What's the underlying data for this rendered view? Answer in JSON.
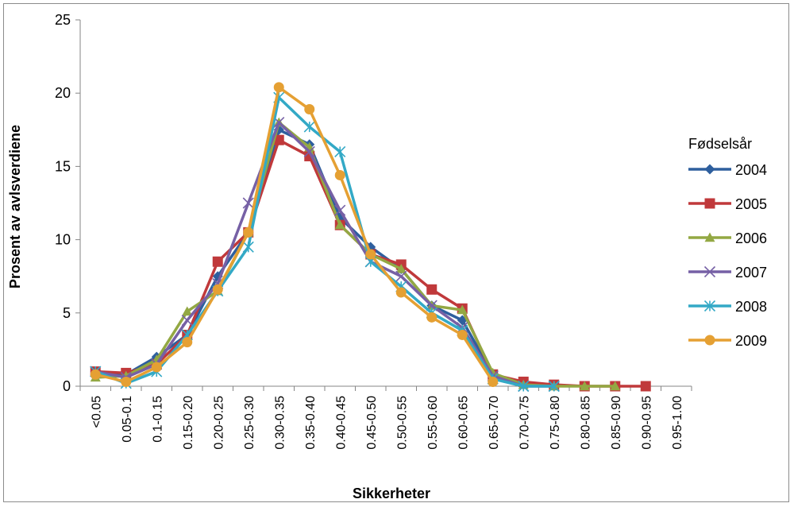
{
  "chart_data": {
    "type": "line",
    "title": "",
    "xlabel": "Sikkerheter",
    "ylabel": "Prosent av avlsverdiene",
    "ylim": [
      0,
      25
    ],
    "yticks": [
      0,
      5,
      10,
      15,
      20,
      25
    ],
    "grid": "none",
    "legend_title": "Fødselsår",
    "legend_position": "right",
    "categories": [
      "<0.05",
      "0.05-0.1",
      "0.1-0.15",
      "0.15-0.20",
      "0.20-0.25",
      "0.25-0.30",
      "0.30-0.35",
      "0.35-0.40",
      "0.40-0.45",
      "0.45-0.50",
      "0.50-0.55",
      "0.55-0.60",
      "0.60-0.65",
      "0.65-0.70",
      "0.70-0.75",
      "0.75-0.80",
      "0.80-0.85",
      "0.85-0.90",
      "0.90-0.95",
      "0.95-1.00"
    ],
    "series": [
      {
        "name": "2004",
        "color": "#2e5f9e",
        "marker": "diamond",
        "values": [
          1.0,
          0.8,
          2.0,
          3.5,
          7.5,
          10.5,
          17.5,
          16.5,
          11.5,
          9.5,
          8.0,
          5.5,
          4.5,
          0.8,
          0.1,
          0.0,
          null,
          null,
          null,
          null
        ]
      },
      {
        "name": "2005",
        "color": "#c0393b",
        "marker": "square",
        "values": [
          1.0,
          0.9,
          1.5,
          3.5,
          8.5,
          10.5,
          16.8,
          15.7,
          11.0,
          9.0,
          8.3,
          6.6,
          5.3,
          0.8,
          0.3,
          0.1,
          0.0,
          0.0,
          0.0,
          null
        ]
      },
      {
        "name": "2006",
        "color": "#93a843",
        "marker": "triangle",
        "values": [
          0.6,
          0.7,
          1.8,
          5.1,
          6.5,
          10.5,
          18.0,
          16.3,
          11.0,
          9.0,
          8.0,
          5.5,
          5.2,
          0.9,
          0.1,
          0.0,
          0.0,
          0.0,
          null,
          null
        ]
      },
      {
        "name": "2007",
        "color": "#7660a5",
        "marker": "x",
        "values": [
          1.0,
          0.6,
          1.5,
          4.5,
          7.0,
          12.5,
          18.0,
          16.0,
          12.0,
          8.5,
          7.5,
          5.5,
          4.0,
          0.7,
          0.0,
          0.0,
          null,
          null,
          null,
          null
        ]
      },
      {
        "name": "2008",
        "color": "#33a9c6",
        "marker": "asterisk",
        "values": [
          1.0,
          0.2,
          1.0,
          3.5,
          6.5,
          9.5,
          19.7,
          17.7,
          16.0,
          8.5,
          6.8,
          5.0,
          3.8,
          0.5,
          0.0,
          0.0,
          null,
          null,
          null,
          null
        ]
      },
      {
        "name": "2009",
        "color": "#e5a033",
        "marker": "circle",
        "values": [
          0.8,
          0.3,
          1.3,
          3.0,
          6.6,
          10.5,
          20.4,
          18.9,
          14.4,
          9.0,
          6.4,
          4.7,
          3.5,
          0.3,
          null,
          null,
          null,
          null,
          null,
          null
        ]
      }
    ]
  }
}
